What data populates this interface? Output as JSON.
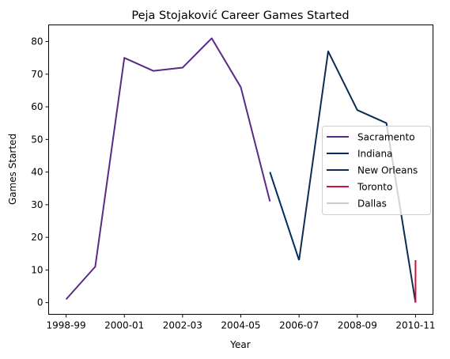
{
  "chart_data": {
    "type": "line",
    "title": "Peja Stojaković Career Games Started",
    "xlabel": "Year",
    "ylabel": "Games Started",
    "x_ticks": [
      "1998-99",
      "2000-01",
      "2002-03",
      "2004-05",
      "2006-07",
      "2008-09",
      "2010-11"
    ],
    "y_ticks": [
      "0",
      "10",
      "20",
      "30",
      "40",
      "50",
      "60",
      "70",
      "80"
    ],
    "ylim": [
      -3.6,
      85.1
    ],
    "xlim": [
      -0.6,
      12.6
    ],
    "grid": false,
    "legend_position": "center-right",
    "series": [
      {
        "name": "Sacramento",
        "color": "#5b2a86",
        "points": [
          {
            "x": "1998-99",
            "y": 1
          },
          {
            "x": "1999-00",
            "y": 11
          },
          {
            "x": "2000-01",
            "y": 75
          },
          {
            "x": "2001-02",
            "y": 71
          },
          {
            "x": "2002-03",
            "y": 72
          },
          {
            "x": "2003-04",
            "y": 81
          },
          {
            "x": "2004-05",
            "y": 66
          },
          {
            "x": "2005-06",
            "y": 31
          }
        ]
      },
      {
        "name": "Indiana",
        "color": "#002d62",
        "points": [
          {
            "x": "2005-06",
            "y": 40
          },
          {
            "x": "2006-07",
            "y": 13
          }
        ]
      },
      {
        "name": "New Orleans",
        "color": "#0c2c56",
        "points": [
          {
            "x": "2006-07",
            "y": 13
          },
          {
            "x": "2007-08",
            "y": 77
          },
          {
            "x": "2008-09",
            "y": 59
          },
          {
            "x": "2009-10",
            "y": 55
          },
          {
            "x": "2010-11",
            "y": 0
          }
        ]
      },
      {
        "name": "Toronto",
        "color": "#ce1141",
        "points": [
          {
            "x": "2010-11",
            "y": 0
          },
          {
            "x": "2010-11",
            "y": 13
          }
        ]
      },
      {
        "name": "Dallas",
        "color": "#c4ced4",
        "points": [
          {
            "x": "2010-11",
            "y": 0
          },
          {
            "x": "2010-11",
            "y": 0
          }
        ]
      }
    ]
  }
}
